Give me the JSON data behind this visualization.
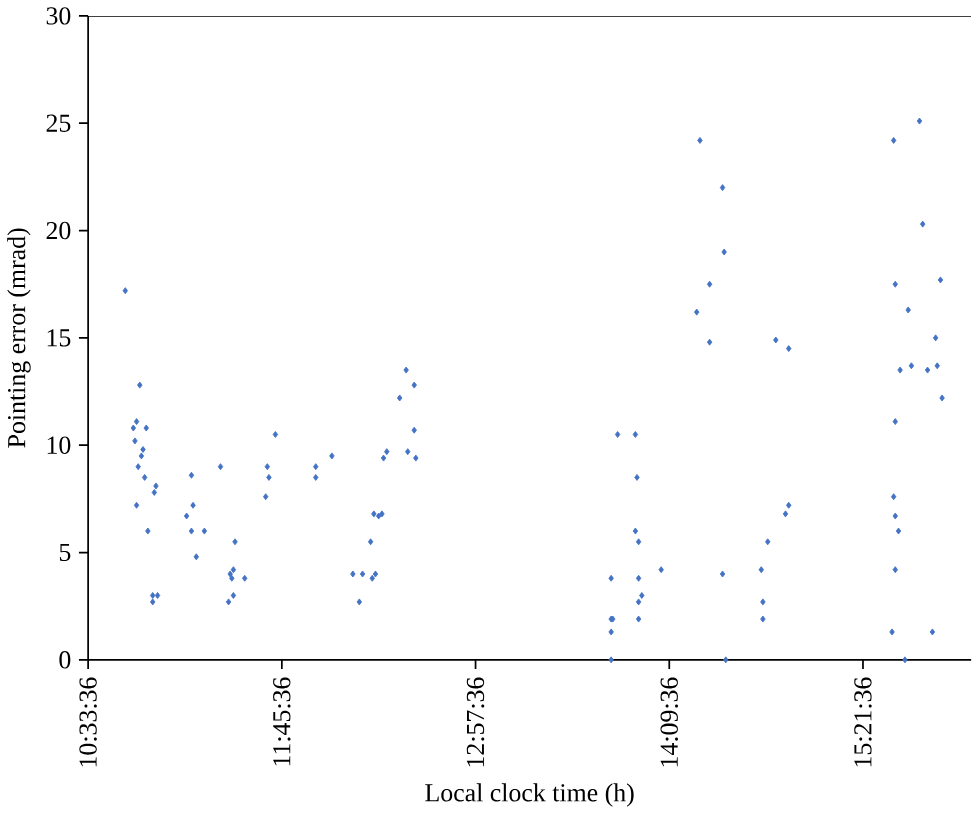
{
  "chart_data": {
    "type": "scatter",
    "xlabel": "Local clock time (h)",
    "ylabel": "Pointing error (mrad)",
    "xlim": [
      10.56,
      16.03
    ],
    "ylim": [
      0,
      30
    ],
    "yticks": [
      0,
      5,
      10,
      15,
      20,
      25,
      30
    ],
    "xticks": [
      {
        "value": 10.56,
        "label": "10:33:36"
      },
      {
        "value": 11.76,
        "label": "11:45:36"
      },
      {
        "value": 12.96,
        "label": "12:57:36"
      },
      {
        "value": 14.16,
        "label": "14:09:36"
      },
      {
        "value": 15.36,
        "label": "15:21:36"
      }
    ],
    "marker": "diamond",
    "grid": false,
    "series": [
      {
        "color": "#4472c4",
        "x": [
          10.79,
          10.84,
          10.86,
          10.85,
          10.88,
          10.87,
          10.9,
          10.89,
          10.92,
          10.86,
          10.91,
          10.93,
          10.98,
          10.97,
          10.96,
          10.99,
          10.96,
          11.17,
          11.2,
          11.21,
          11.2,
          11.23,
          11.28,
          11.38,
          11.44,
          11.46,
          11.45,
          11.43,
          11.46,
          11.47,
          11.53,
          11.67,
          11.68,
          11.66,
          11.72,
          11.97,
          11.97,
          12.07,
          12.2,
          12.26,
          12.24,
          12.31,
          12.32,
          12.34,
          12.33,
          12.36,
          12.38,
          12.39,
          12.41,
          12.49,
          12.53,
          12.58,
          12.58,
          12.54,
          12.59,
          13.8,
          13.8,
          13.8,
          13.81,
          13.8,
          13.84,
          13.95,
          13.96,
          13.95,
          13.97,
          13.97,
          13.99,
          13.97,
          13.97,
          14.11,
          14.35,
          14.49,
          14.5,
          14.41,
          14.33,
          14.41,
          14.49,
          14.51,
          14.73,
          14.77,
          14.74,
          14.74,
          14.82,
          14.9,
          14.88,
          14.9,
          15.55,
          15.71,
          15.73,
          15.56,
          15.84,
          15.64,
          15.81,
          15.59,
          15.66,
          15.76,
          15.82,
          15.85,
          15.56,
          15.55,
          15.56,
          15.58,
          15.56,
          15.54,
          15.79,
          15.62
        ],
        "values": [
          17.2,
          10.8,
          11.1,
          10.2,
          12.8,
          9.0,
          9.8,
          9.5,
          10.8,
          7.2,
          8.5,
          6.0,
          8.1,
          7.8,
          3.0,
          3.0,
          2.7,
          6.7,
          8.6,
          7.2,
          6.0,
          4.8,
          6.0,
          9.0,
          4.0,
          4.2,
          3.8,
          2.7,
          3.0,
          5.5,
          3.8,
          9.0,
          8.5,
          7.6,
          10.5,
          9.0,
          8.5,
          9.5,
          4.0,
          4.0,
          2.7,
          5.5,
          3.8,
          4.0,
          6.8,
          6.7,
          6.8,
          9.4,
          9.7,
          12.2,
          13.5,
          12.8,
          10.7,
          9.7,
          9.4,
          0,
          1.3,
          1.9,
          1.9,
          3.8,
          10.5,
          10.5,
          8.5,
          6.0,
          5.5,
          3.8,
          3.0,
          2.7,
          1.9,
          4.2,
          24.2,
          22.0,
          19.0,
          17.5,
          16.2,
          14.8,
          4.0,
          0,
          4.2,
          5.5,
          2.7,
          1.9,
          14.9,
          14.5,
          6.8,
          7.2,
          24.2,
          25.1,
          20.3,
          17.5,
          17.7,
          16.3,
          15.0,
          13.5,
          13.7,
          13.5,
          13.7,
          12.2,
          11.1,
          7.6,
          6.7,
          6.0,
          4.2,
          1.3,
          1.3,
          0
        ]
      }
    ]
  }
}
